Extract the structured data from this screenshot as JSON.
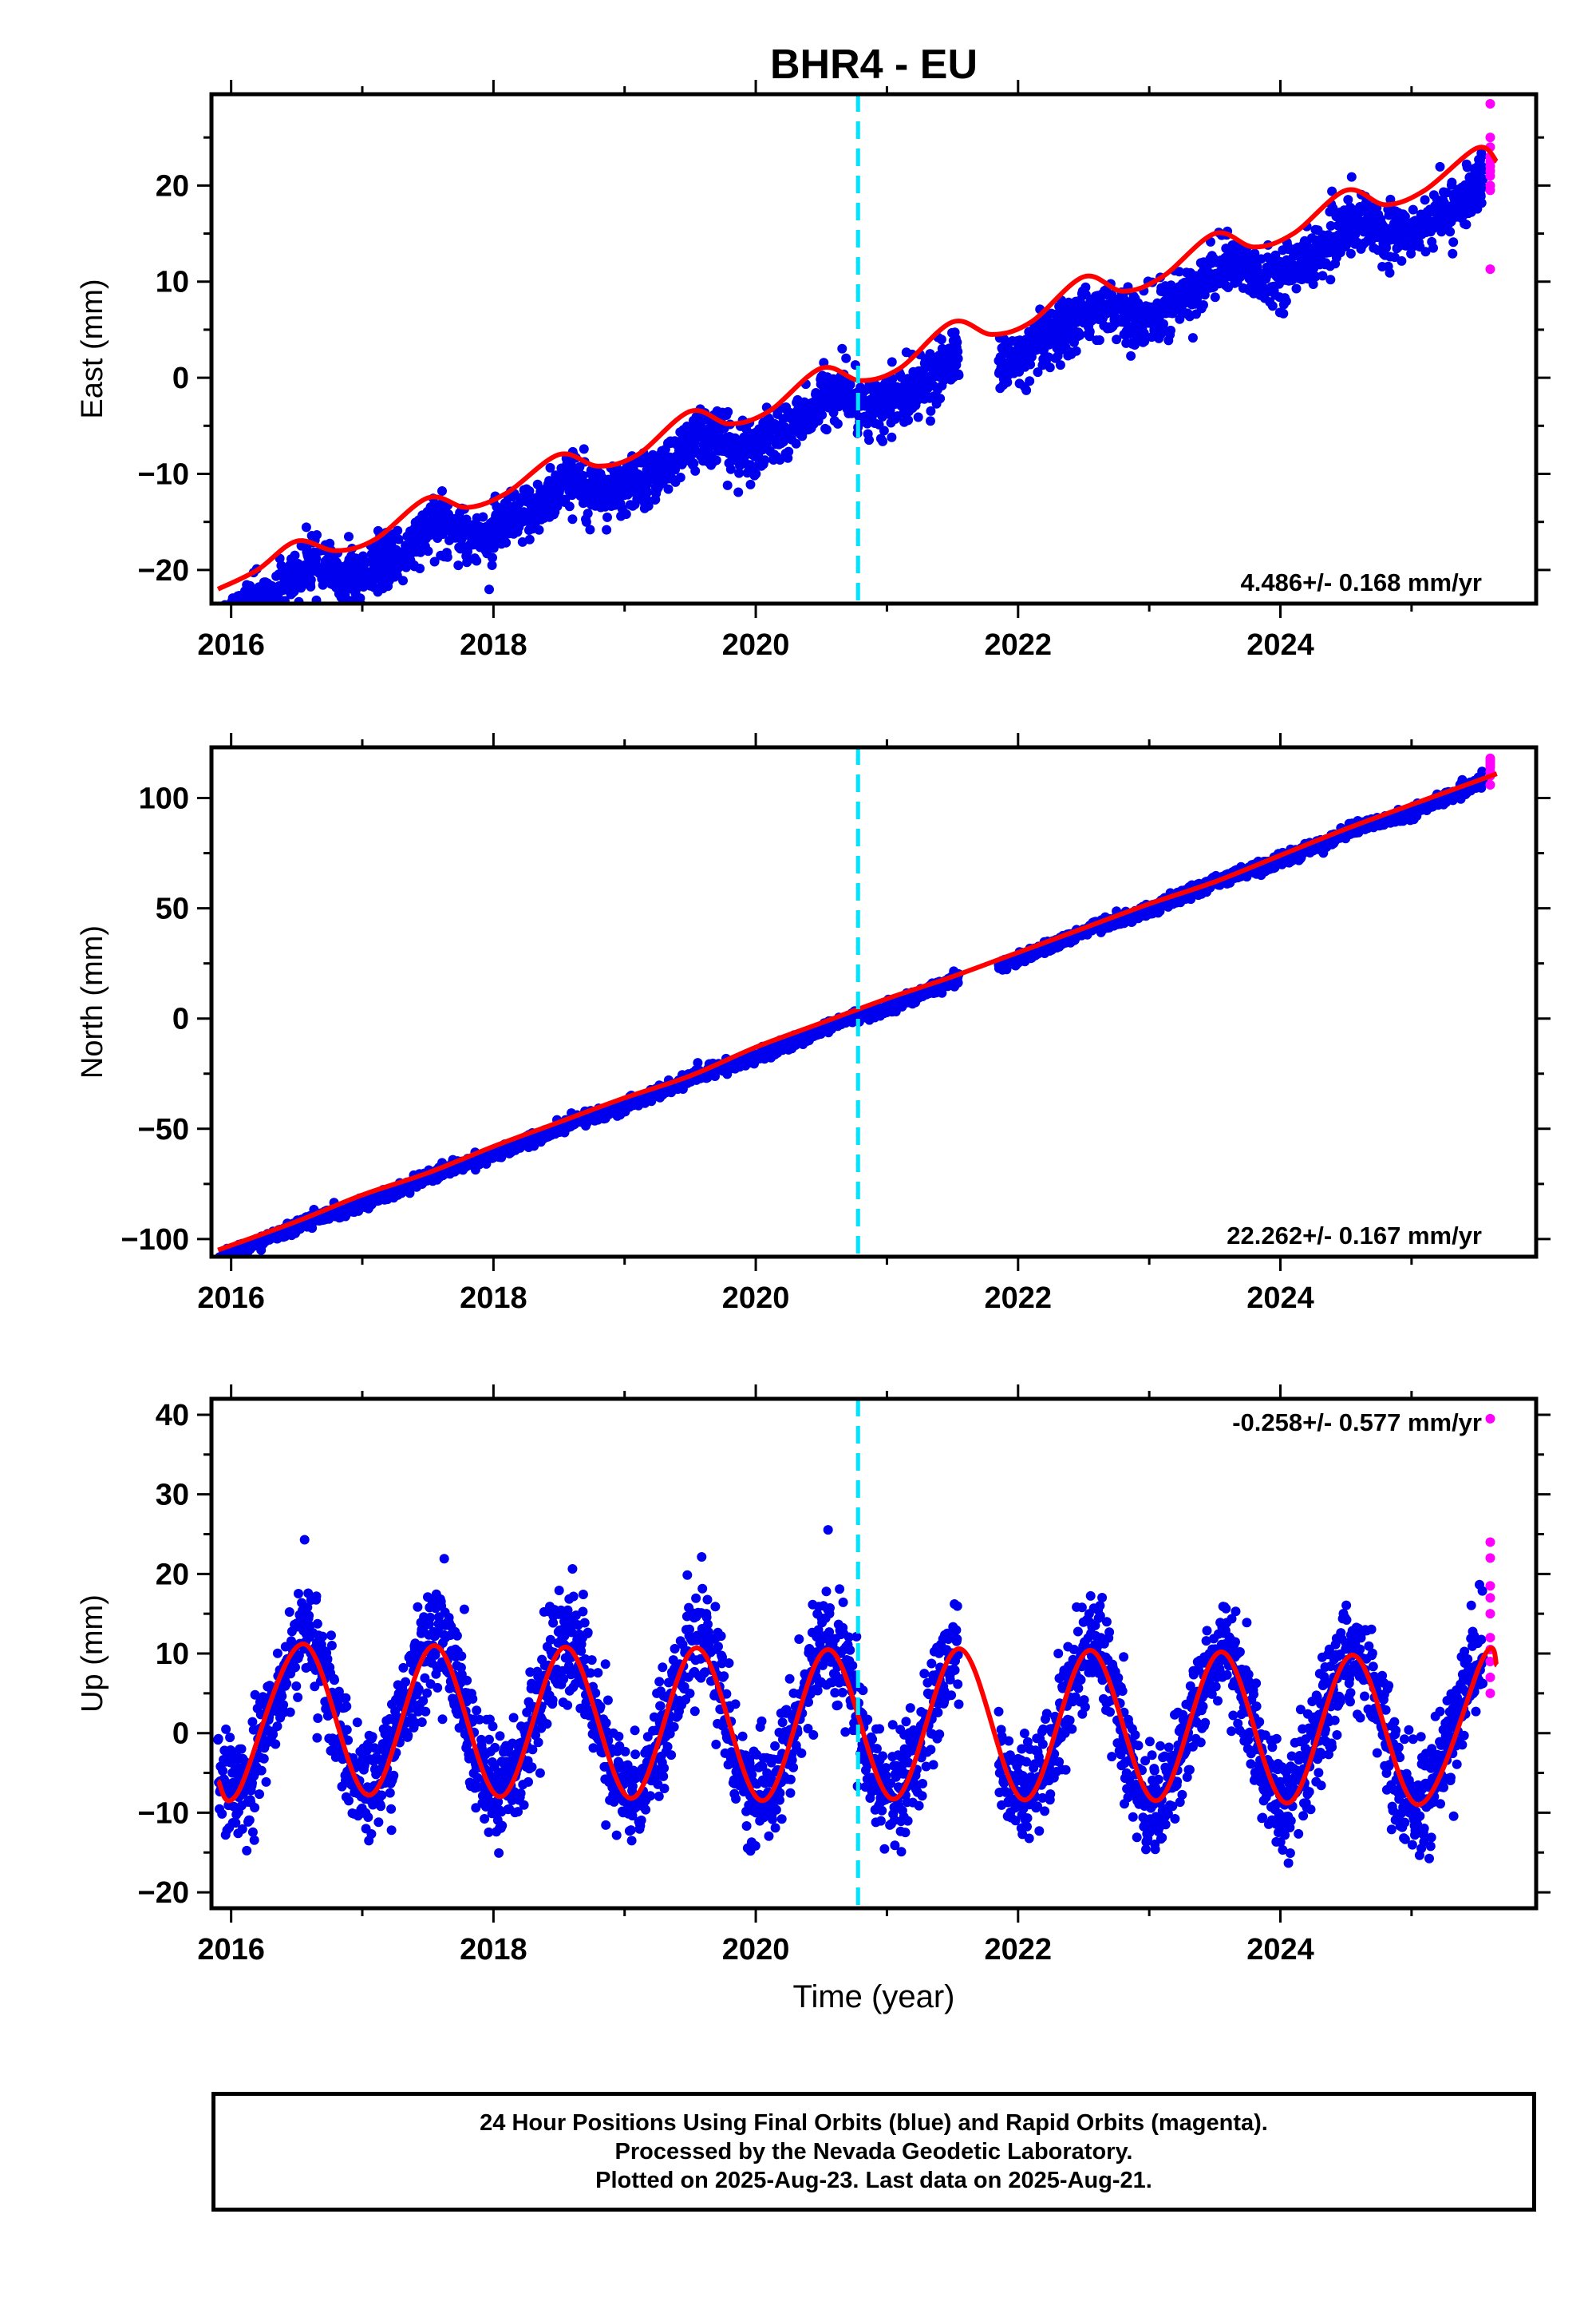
{
  "title": "BHR4 - EU",
  "xlabel": "Time (year)",
  "colors": {
    "final_orbits": "#0000ee",
    "rapid_orbits": "#ff00ff",
    "model": "#ff0000",
    "marker": "#00e5ff"
  },
  "footer": {
    "line1": "24 Hour Positions Using Final Orbits (blue) and Rapid Orbits (magenta).",
    "line2": "Processed by the Nevada Geodetic Laboratory.",
    "line3": "Plotted on 2025-Aug-23. Last data on 2025-Aug-21."
  },
  "chart_data": [
    {
      "type": "scatter",
      "ylabel": "East (mm)",
      "rate": "4.486+/- 0.168 mm/yr",
      "rate_position": "bottom-right",
      "xlim": [
        2015.85,
        2025.95
      ],
      "ylim": [
        -23.5,
        29.5
      ],
      "xticks": [
        2016,
        2018,
        2020,
        2022,
        2024
      ],
      "yticks": [
        -20,
        -10,
        0,
        10,
        20
      ],
      "marker_line_x": 2020.78,
      "model_series": {
        "name": "model",
        "x": [
          2015.9,
          2016.2,
          2016.5,
          2016.8,
          2017.1,
          2017.5,
          2017.8,
          2018.1,
          2018.5,
          2018.8,
          2019.1,
          2019.5,
          2019.8,
          2020.1,
          2020.5,
          2020.8,
          2021.1,
          2021.5,
          2021.8,
          2022.1,
          2022.5,
          2022.8,
          2023.1,
          2023.5,
          2023.8,
          2024.1,
          2024.5,
          2024.8,
          2025.1,
          2025.5,
          2025.65
        ],
        "y": [
          -22,
          -20,
          -17,
          -18,
          -16.8,
          -12.5,
          -13.5,
          -12,
          -8,
          -9.2,
          -8,
          -3.5,
          -4.8,
          -3.5,
          1,
          -0.3,
          1,
          5.8,
          4.5,
          5.8,
          10.5,
          9,
          10.5,
          15,
          13.6,
          15,
          19.5,
          18,
          19.5,
          23.9,
          22.5
        ]
      },
      "final_points": {
        "x_range": [
          2015.9,
          2025.55
        ],
        "trend": {
          "slope": 4.486,
          "intercept": -1.5,
          "reference_year": 2021.0
        },
        "annual_amplitude": 1.3,
        "semiannual_amplitude": 0.4,
        "scatter": 1.4,
        "gap": [
          2021.55,
          2021.85
        ]
      },
      "rapid_points": {
        "x": [
          2025.6,
          2025.6,
          2025.6,
          2025.6,
          2025.6,
          2025.6,
          2025.6,
          2025.6,
          2025.6,
          2025.6,
          2025.6
        ],
        "y": [
          28.5,
          25,
          24,
          23,
          22.5,
          22,
          21.5,
          21,
          20,
          19.5,
          11.3
        ]
      }
    },
    {
      "type": "scatter",
      "ylabel": "North (mm)",
      "rate": "22.262+/- 0.167 mm/yr",
      "rate_position": "bottom-right",
      "xlim": [
        2015.85,
        2025.95
      ],
      "ylim": [
        -108,
        123
      ],
      "xticks": [
        2016,
        2018,
        2020,
        2022,
        2024
      ],
      "yticks": [
        -100,
        -50,
        0,
        50,
        100
      ],
      "marker_line_x": 2020.78,
      "model_series": {
        "name": "model",
        "x": [
          2015.9,
          2016.5,
          2017.0,
          2017.5,
          2018.0,
          2018.5,
          2019.0,
          2019.5,
          2020.0,
          2020.5,
          2021.0,
          2021.5,
          2022.0,
          2022.5,
          2023.0,
          2023.5,
          2024.0,
          2024.5,
          2025.0,
          2025.65
        ],
        "y": [
          -105,
          -92,
          -80,
          -70,
          -58,
          -47,
          -36,
          -26,
          -13,
          -2,
          9,
          19,
          30,
          41,
          52,
          62,
          74,
          86,
          97,
          111
        ]
      },
      "final_points": {
        "x_range": [
          2015.9,
          2025.55
        ],
        "trend": {
          "slope": 22.262,
          "intercept": 5.5,
          "reference_year": 2021.0
        },
        "annual_amplitude": 0.8,
        "semiannual_amplitude": 0.3,
        "scatter": 1.3,
        "gap": [
          2021.55,
          2021.85
        ]
      },
      "rapid_points": {
        "x": [
          2025.6,
          2025.6,
          2025.6,
          2025.6,
          2025.6,
          2025.6,
          2025.6,
          2025.6
        ],
        "y": [
          118,
          117,
          116,
          115,
          114,
          112,
          110,
          106
        ]
      }
    },
    {
      "type": "scatter",
      "ylabel": "Up (mm)",
      "rate": "-0.258+/- 0.577 mm/yr",
      "rate_position": "top-right",
      "xlim": [
        2015.85,
        2025.95
      ],
      "ylim": [
        -22,
        42
      ],
      "xticks": [
        2016,
        2018,
        2020,
        2022,
        2024
      ],
      "yticks": [
        -20,
        -10,
        0,
        10,
        20,
        30,
        40
      ],
      "marker_line_x": 2020.78,
      "model_series": {
        "name": "model",
        "x": [
          2015.9,
          2016.05,
          2016.55,
          2017.05,
          2017.55,
          2018.05,
          2018.55,
          2019.05,
          2019.55,
          2020.05,
          2020.55,
          2021.05,
          2021.55,
          2022.05,
          2022.55,
          2023.05,
          2023.55,
          2024.05,
          2024.55,
          2025.05,
          2025.55,
          2025.65
        ],
        "y": [
          -6,
          -7.5,
          11.2,
          -7.8,
          11,
          -8,
          10.8,
          -8.2,
          10.7,
          -8.5,
          10.5,
          -8.3,
          10.6,
          -8.4,
          10.4,
          -8.5,
          10.2,
          -8.8,
          9.8,
          -9,
          9.6,
          8.5
        ]
      },
      "final_points": {
        "x_range": [
          2015.9,
          2025.55
        ],
        "trend": {
          "slope": -0.258,
          "intercept": 1.2,
          "reference_year": 2021.0
        },
        "annual_amplitude": 9.6,
        "semiannual_amplitude": 0.8,
        "scatter": 3.3,
        "gap": [
          2021.55,
          2021.85
        ]
      },
      "rapid_points": {
        "x": [
          2025.6,
          2025.6,
          2025.6,
          2025.6,
          2025.6,
          2025.6,
          2025.6,
          2025.6,
          2025.6,
          2025.6,
          2025.6
        ],
        "y": [
          39.5,
          24,
          22,
          18.5,
          17,
          15,
          12,
          10.5,
          9,
          7,
          5
        ]
      }
    }
  ]
}
